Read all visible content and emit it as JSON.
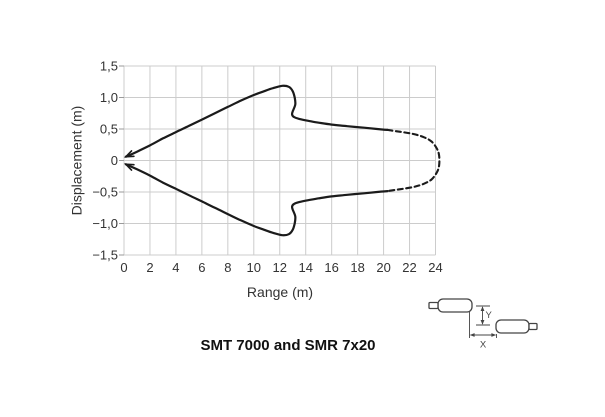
{
  "figure": {
    "title": "SMT 7000 and SMR 7x20"
  },
  "chart": {
    "y_label": "Displacement (m)",
    "x_label": "Range (m)",
    "y_tick_labels": [
      "1,5",
      "1,0",
      "0,5",
      "0",
      "−0,5",
      "−1,0",
      "−1,5"
    ],
    "x_tick_labels": [
      "0",
      "2",
      "4",
      "6",
      "8",
      "10",
      "12",
      "14",
      "16",
      "18",
      "20",
      "22",
      "24"
    ]
  },
  "icon": {
    "y_label": "Y",
    "x_label": "X"
  },
  "colors": {
    "curve": "#1b1b1b",
    "grid": "#cccccc",
    "text": "#333333",
    "dim": "#444444",
    "title": "#111111"
  },
  "chart_data": {
    "type": "line",
    "title": "SMT 7000 and SMR 7x20",
    "xlabel": "Range (m)",
    "ylabel": "Displacement (m)",
    "xlim": [
      0,
      24
    ],
    "ylim": [
      -1.5,
      1.5
    ],
    "x_ticks": [
      0,
      2,
      4,
      6,
      8,
      10,
      12,
      14,
      16,
      18,
      20,
      22,
      24
    ],
    "y_ticks": [
      1.5,
      1.0,
      0.5,
      0,
      -0.5,
      -1.0,
      -1.5
    ],
    "grid": true,
    "legend": "none",
    "series": [
      {
        "name": "detection-boundary-upper-solid",
        "line_style": "solid",
        "start_arrow": true,
        "points": [
          [
            0.15,
            0.06
          ],
          [
            1,
            0.14
          ],
          [
            2,
            0.24
          ],
          [
            3,
            0.35
          ],
          [
            4,
            0.45
          ],
          [
            5,
            0.55
          ],
          [
            6,
            0.65
          ],
          [
            7,
            0.75
          ],
          [
            8,
            0.85
          ],
          [
            9,
            0.95
          ],
          [
            10,
            1.04
          ],
          [
            10.8,
            1.1
          ],
          [
            11.5,
            1.15
          ],
          [
            12.2,
            1.185
          ],
          [
            12.7,
            1.17
          ],
          [
            13.0,
            1.1
          ],
          [
            13.15,
            1.0
          ],
          [
            13.2,
            0.89
          ],
          [
            13.0,
            0.78
          ],
          [
            12.95,
            0.73
          ],
          [
            13.1,
            0.69
          ],
          [
            13.5,
            0.66
          ],
          [
            14.2,
            0.63
          ],
          [
            15,
            0.6
          ],
          [
            16,
            0.57
          ],
          [
            17.2,
            0.545
          ],
          [
            18.5,
            0.52
          ],
          [
            19.5,
            0.5
          ],
          [
            20.3,
            0.485
          ]
        ]
      },
      {
        "name": "detection-boundary-far-dashed",
        "line_style": "dashed",
        "start_arrow": false,
        "points": [
          [
            20.3,
            0.485
          ],
          [
            21.3,
            0.455
          ],
          [
            22.3,
            0.42
          ],
          [
            23.1,
            0.37
          ],
          [
            23.7,
            0.3
          ],
          [
            24.1,
            0.19
          ],
          [
            24.28,
            0.08
          ],
          [
            24.28,
            -0.08
          ],
          [
            24.1,
            -0.19
          ],
          [
            23.7,
            -0.3
          ],
          [
            23.1,
            -0.37
          ],
          [
            22.3,
            -0.42
          ],
          [
            21.3,
            -0.455
          ],
          [
            20.3,
            -0.485
          ]
        ]
      },
      {
        "name": "detection-boundary-lower-solid",
        "line_style": "solid",
        "start_arrow": true,
        "points": [
          [
            0.15,
            -0.06
          ],
          [
            1,
            -0.14
          ],
          [
            2,
            -0.24
          ],
          [
            3,
            -0.35
          ],
          [
            4,
            -0.45
          ],
          [
            5,
            -0.55
          ],
          [
            6,
            -0.65
          ],
          [
            7,
            -0.75
          ],
          [
            8,
            -0.85
          ],
          [
            9,
            -0.95
          ],
          [
            10,
            -1.04
          ],
          [
            10.8,
            -1.1
          ],
          [
            11.5,
            -1.15
          ],
          [
            12.2,
            -1.185
          ],
          [
            12.7,
            -1.17
          ],
          [
            13.0,
            -1.1
          ],
          [
            13.15,
            -1.0
          ],
          [
            13.2,
            -0.89
          ],
          [
            13.0,
            -0.78
          ],
          [
            12.95,
            -0.73
          ],
          [
            13.1,
            -0.69
          ],
          [
            13.5,
            -0.66
          ],
          [
            14.2,
            -0.63
          ],
          [
            15,
            -0.6
          ],
          [
            16,
            -0.57
          ],
          [
            17.2,
            -0.545
          ],
          [
            18.5,
            -0.52
          ],
          [
            19.5,
            -0.5
          ],
          [
            20.3,
            -0.485
          ]
        ]
      }
    ]
  }
}
